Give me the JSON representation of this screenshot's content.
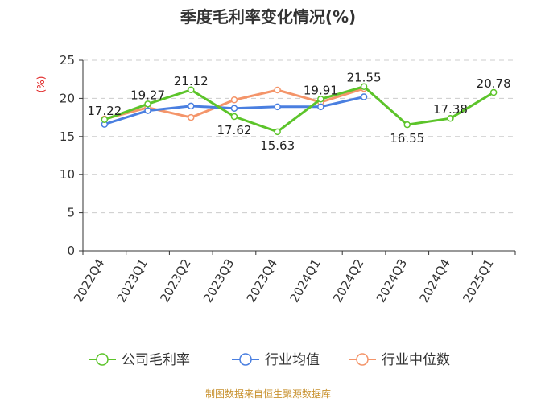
{
  "title": "季度毛利率变化情况(%)",
  "source": "制图数据来自恒生聚源数据库",
  "colors": {
    "company": "#5cc42a",
    "industry_avg": "#4a7fe0",
    "industry_median": "#f4956a",
    "grid": "#cccccc",
    "axis": "#333333",
    "unit": "#e02020"
  },
  "chart_data": {
    "type": "line",
    "title": "季度毛利率变化情况(%)",
    "ylabel": "(%)",
    "xlabel": "",
    "ylim": [
      0,
      25
    ],
    "yticks": [
      0,
      5,
      10,
      15,
      20,
      25
    ],
    "grid": true,
    "legend_position": "bottom",
    "categories": [
      "2022Q4",
      "2023Q1",
      "2023Q2",
      "2023Q3",
      "2023Q4",
      "2024Q1",
      "2024Q2",
      "2024Q3",
      "2024Q4",
      "2025Q1"
    ],
    "series": [
      {
        "name": "公司毛利率",
        "key": "company",
        "values": [
          17.22,
          19.27,
          21.12,
          17.62,
          15.63,
          19.91,
          21.55,
          16.55,
          17.38,
          20.78
        ],
        "labels": [
          "17.22",
          "19.27",
          "21.12",
          "17.62",
          "15.63",
          "19.91",
          "21.55",
          "16.55",
          "17.38",
          "20.78"
        ]
      },
      {
        "name": "行业均值",
        "key": "industry_avg",
        "values": [
          16.6,
          18.4,
          19.0,
          18.7,
          18.9,
          18.9,
          20.2,
          null,
          null,
          null
        ]
      },
      {
        "name": "行业中位数",
        "key": "industry_median",
        "values": [
          17.3,
          18.8,
          17.5,
          19.8,
          21.1,
          19.5,
          21.3,
          null,
          null,
          null
        ]
      }
    ]
  }
}
